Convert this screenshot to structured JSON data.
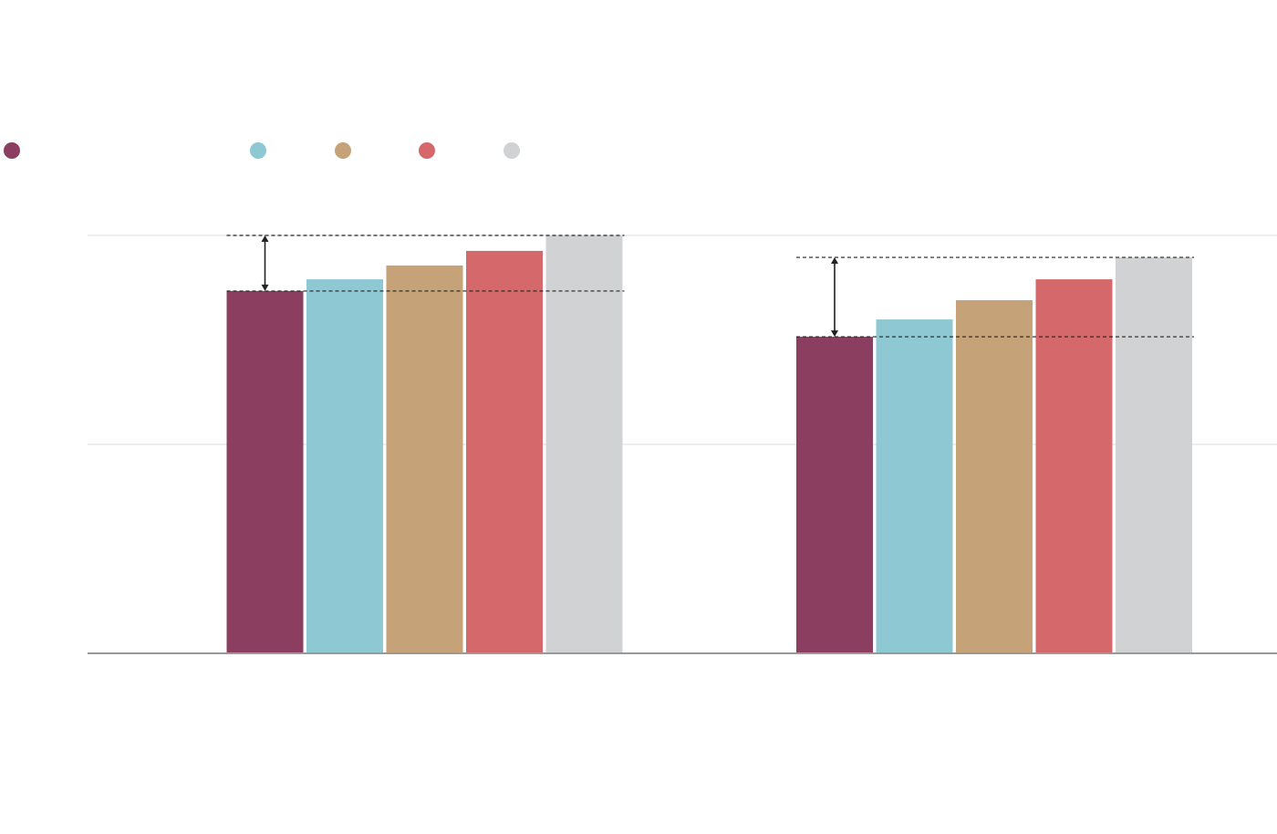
{
  "chart_data": {
    "type": "bar",
    "categories": [
      null,
      null
    ],
    "series": [
      {
        "color": "#8b3e5f",
        "values": [
          1.734,
          1.515
        ]
      },
      {
        "color": "#8ec8d3",
        "values": [
          1.79,
          1.598
        ]
      },
      {
        "color": "#c6a278",
        "values": [
          1.856,
          1.69
        ]
      },
      {
        "color": "#d5686a",
        "values": [
          1.926,
          1.79
        ]
      },
      {
        "color": "#d1d2d4",
        "values": [
          2.0,
          1.895
        ]
      }
    ],
    "ylim": [
      0,
      2
    ],
    "yticks": [
      0,
      1,
      2
    ],
    "grid": true
  }
}
